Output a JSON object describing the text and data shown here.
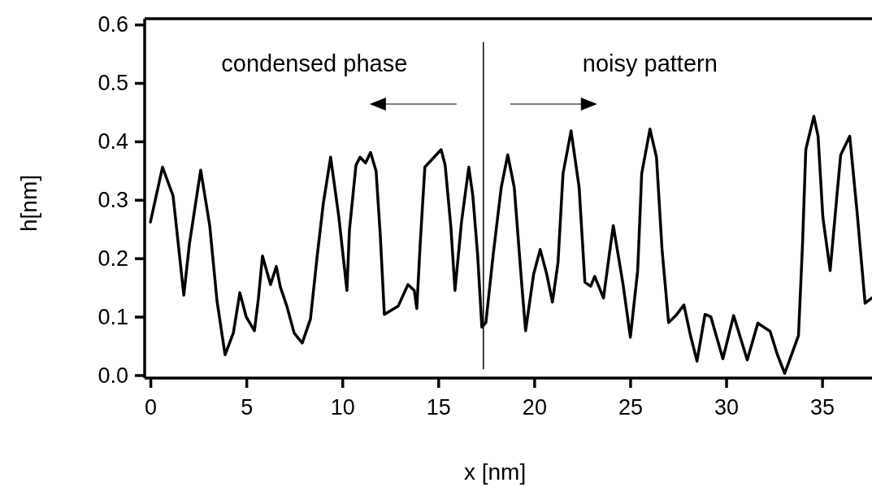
{
  "chart_data": {
    "type": "line",
    "xlabel": "x [nm]",
    "ylabel": "h[nm]",
    "xlim": [
      -0.3,
      37.6
    ],
    "xticks": [
      0,
      5,
      10,
      15,
      20,
      25,
      30,
      35
    ],
    "ylim": [
      -0.005,
      0.61
    ],
    "yticks": [
      {
        "value": 0,
        "label": "0.0"
      },
      0.1,
      0.2,
      0.3,
      0.4,
      0.5,
      0.6
    ],
    "grid": false,
    "marker": "none",
    "line_style": "solid",
    "ref_lines": [
      {
        "axis": "x",
        "value": 17.35,
        "color": "#000000"
      }
    ],
    "annotations": [
      "condensed phase",
      "noisy pattern"
    ],
    "series": [
      {
        "color": "#000000",
        "x": [
          0,
          0.63,
          1.18,
          1.74,
          2.03,
          2.62,
          3.09,
          3.47,
          3.89,
          4.32,
          4.66,
          4.99,
          5.42,
          5.63,
          5.84,
          6.26,
          6.56,
          6.77,
          7.11,
          7.49,
          7.91,
          8.34,
          8.68,
          9.01,
          9.39,
          9.82,
          10.24,
          10.37,
          10.71,
          10.92,
          11.21,
          11.47,
          11.76,
          11.98,
          12.19,
          12.91,
          13.42,
          13.75,
          13.88,
          14.05,
          14.3,
          15.15,
          15.36,
          15.66,
          15.87,
          16.21,
          16.59,
          16.8,
          17.05,
          17.27,
          17.48,
          17.86,
          18.28,
          18.62,
          18.96,
          19.34,
          19.55,
          19.97,
          20.31,
          20.65,
          20.95,
          21.24,
          21.5,
          21.92,
          22.34,
          22.64,
          22.94,
          23.15,
          23.61,
          23.91,
          24.12,
          24.63,
          25.01,
          25.39,
          25.6,
          26.03,
          26.37,
          26.66,
          27.0,
          27.38,
          27.8,
          28.14,
          28.48,
          28.9,
          29.2,
          29.83,
          30.39,
          31.1,
          31.65,
          32.29,
          32.67,
          33.05,
          33.43,
          33.77,
          33.98,
          34.15,
          34.57,
          34.79,
          35.04,
          35.42,
          35.76,
          35.97,
          36.44,
          36.82,
          37.24,
          37.58
        ],
        "values": [
          0.262,
          0.356,
          0.307,
          0.137,
          0.224,
          0.351,
          0.256,
          0.127,
          0.035,
          0.072,
          0.141,
          0.1,
          0.076,
          0.132,
          0.204,
          0.155,
          0.186,
          0.151,
          0.118,
          0.072,
          0.055,
          0.096,
          0.201,
          0.294,
          0.373,
          0.27,
          0.145,
          0.248,
          0.359,
          0.373,
          0.363,
          0.381,
          0.349,
          0.238,
          0.104,
          0.118,
          0.155,
          0.145,
          0.114,
          0.22,
          0.356,
          0.386,
          0.359,
          0.252,
          0.145,
          0.262,
          0.356,
          0.307,
          0.206,
          0.082,
          0.09,
          0.206,
          0.321,
          0.377,
          0.321,
          0.159,
          0.076,
          0.173,
          0.215,
          0.173,
          0.125,
          0.193,
          0.345,
          0.418,
          0.321,
          0.159,
          0.152,
          0.169,
          0.132,
          0.206,
          0.256,
          0.155,
          0.065,
          0.179,
          0.345,
          0.421,
          0.373,
          0.215,
          0.09,
          0.102,
          0.12,
          0.068,
          0.024,
          0.104,
          0.1,
          0.028,
          0.102,
          0.026,
          0.089,
          0.075,
          0.035,
          0.003,
          0.037,
          0.068,
          0.224,
          0.386,
          0.443,
          0.409,
          0.27,
          0.179,
          0.303,
          0.377,
          0.409,
          0.28,
          0.123,
          0.132
        ]
      }
    ]
  }
}
